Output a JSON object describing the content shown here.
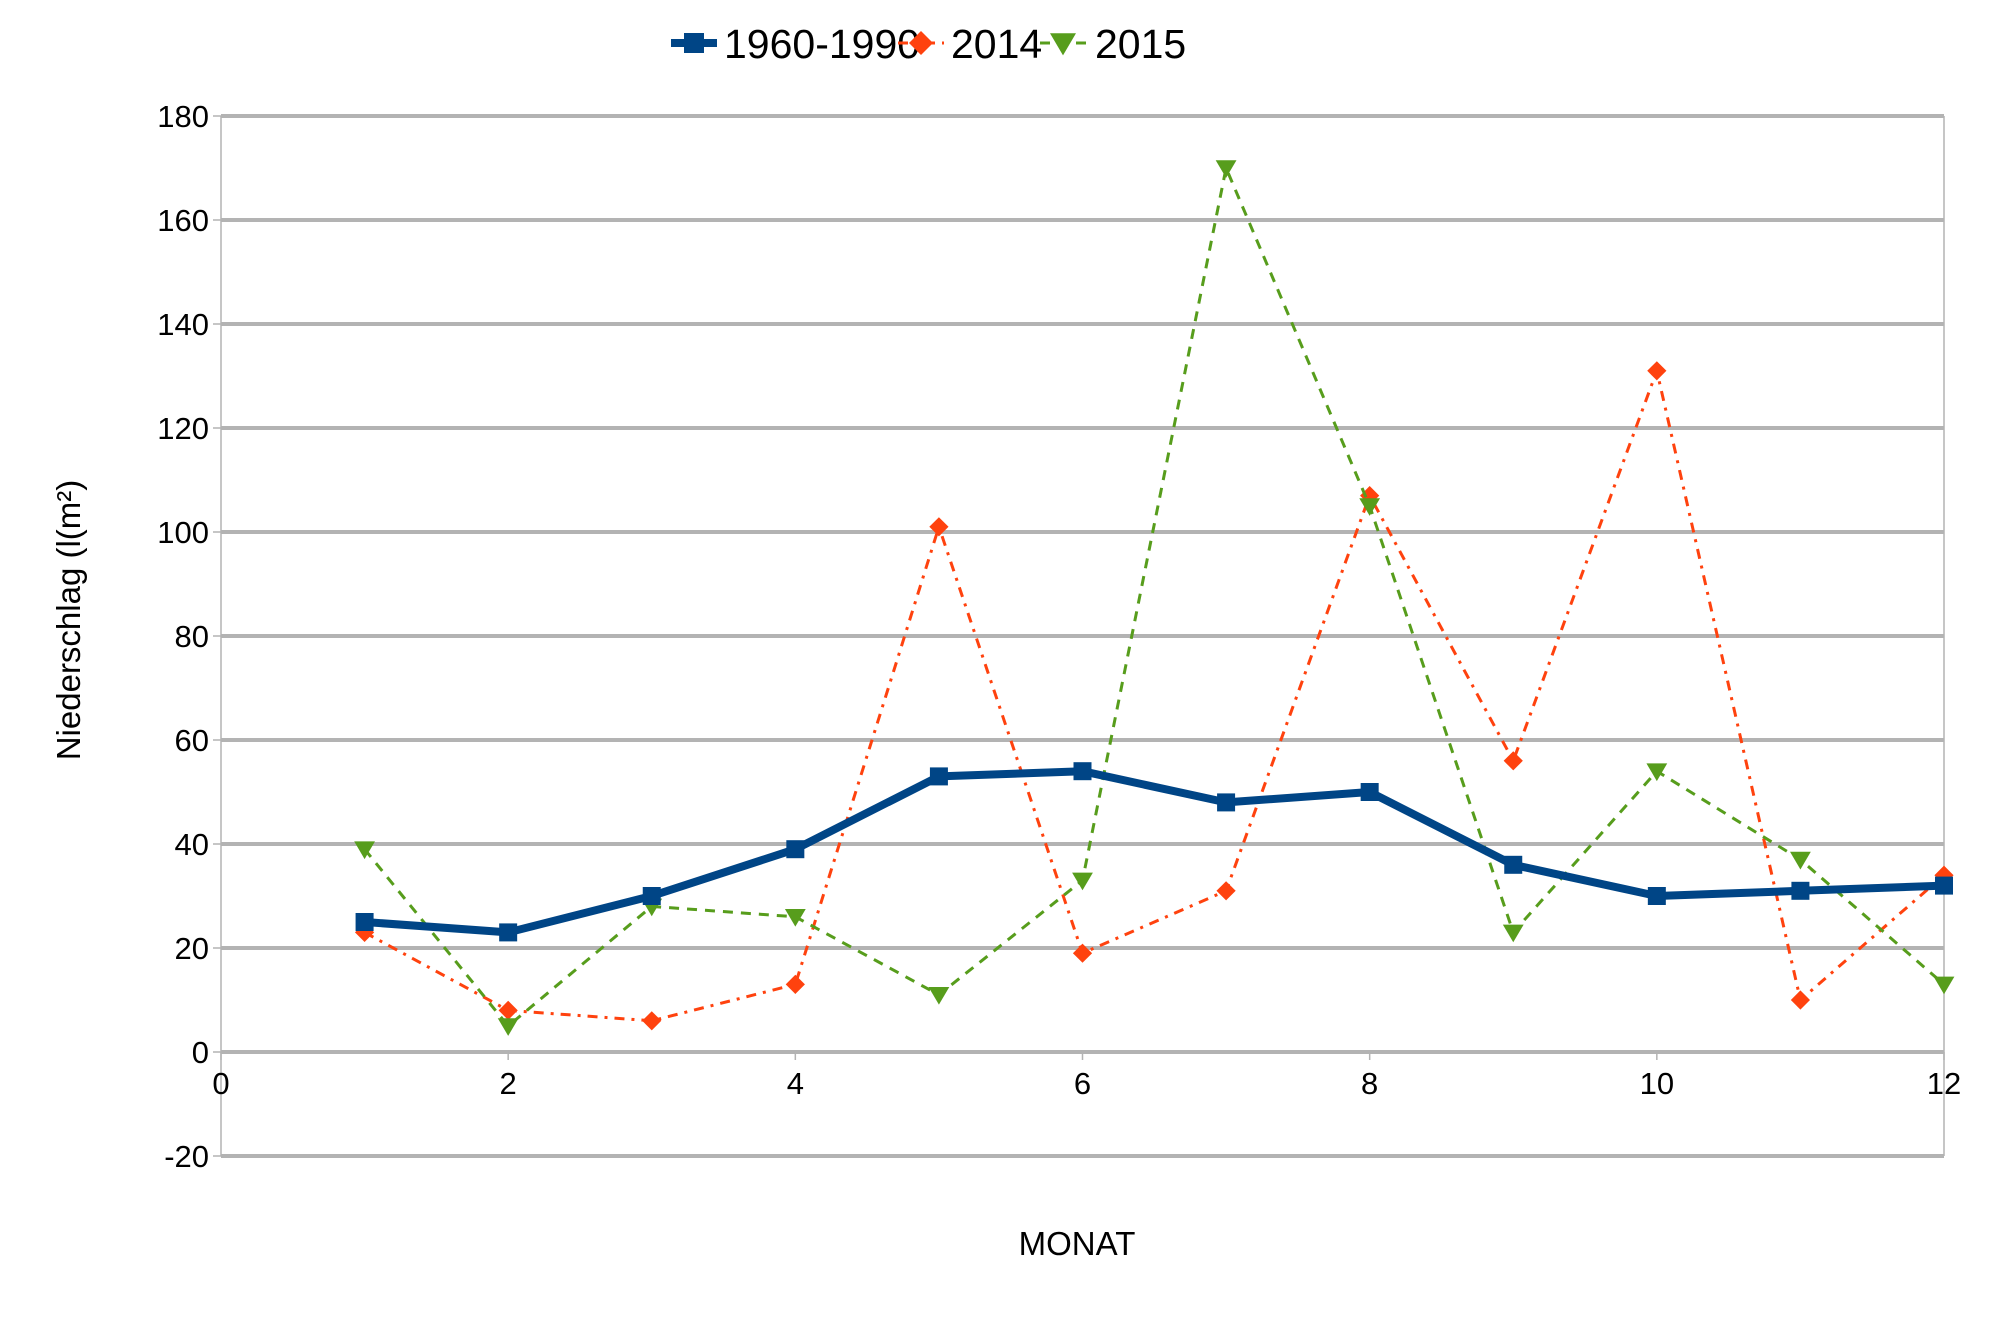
{
  "chart_data": {
    "type": "line",
    "title": "",
    "xlabel": "MONAT",
    "ylabel": "Niederschlag (l(m²)",
    "xlim": [
      0,
      12
    ],
    "ylim": [
      -20,
      180
    ],
    "x_ticks": [
      0,
      2,
      4,
      6,
      8,
      10,
      12
    ],
    "y_ticks": [
      -20,
      0,
      20,
      40,
      60,
      80,
      100,
      120,
      140,
      160,
      180
    ],
    "grid": "horizontal",
    "legend_position": "top-center",
    "x": [
      1,
      2,
      3,
      4,
      5,
      6,
      7,
      8,
      9,
      10,
      11,
      12
    ],
    "series": [
      {
        "name": "1960-1990",
        "color": "#004586",
        "line_style": "solid",
        "marker": "square",
        "values": [
          25,
          23,
          30,
          39,
          53,
          54,
          48,
          50,
          36,
          30,
          31,
          32
        ]
      },
      {
        "name": "2014",
        "color": "#ff420e",
        "line_style": "dash-dot",
        "marker": "diamond",
        "values": [
          23,
          8,
          6,
          13,
          101,
          19,
          31,
          107,
          56,
          131,
          10,
          34
        ]
      },
      {
        "name": "2015",
        "color": "#579d1c",
        "line_style": "dashed",
        "marker": "triangle-down",
        "values": [
          39,
          5,
          28,
          26,
          11,
          33,
          170,
          105,
          23,
          54,
          37,
          13
        ]
      }
    ]
  }
}
